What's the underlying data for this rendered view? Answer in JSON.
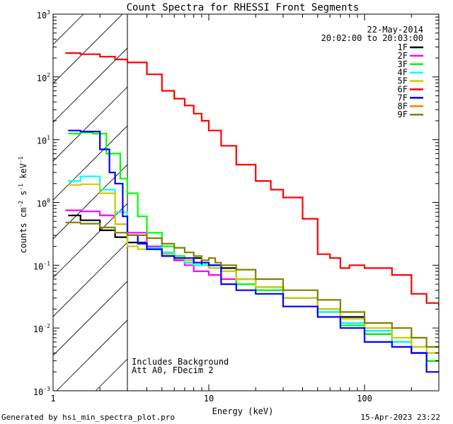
{
  "chart_data": {
    "type": "line",
    "title": "Count Spectra for RHESSI Front Segments",
    "xlabel": "Energy (keV)",
    "ylabel_parts": [
      "counts cm",
      "-2",
      " s",
      "-1",
      " keV",
      "-1"
    ],
    "xscale": "log",
    "yscale": "log",
    "xlim": [
      1,
      300
    ],
    "ylim": [
      0.001,
      1000
    ],
    "x_ticks": [
      {
        "value": 1,
        "label": "1"
      },
      {
        "value": 10,
        "label": "10"
      },
      {
        "value": 100,
        "label": "100"
      }
    ],
    "y_ticks": [
      {
        "value": 0.001,
        "base": "10",
        "exp": "-3"
      },
      {
        "value": 0.01,
        "base": "10",
        "exp": "-2"
      },
      {
        "value": 0.1,
        "base": "10",
        "exp": "-1"
      },
      {
        "value": 1,
        "base": "10",
        "exp": "0"
      },
      {
        "value": 10,
        "base": "10",
        "exp": "1"
      },
      {
        "value": 100,
        "base": "10",
        "exp": "2"
      },
      {
        "value": 1000,
        "base": "10",
        "exp": "3"
      }
    ],
    "hatched_region_keV": [
      1,
      3
    ],
    "date": "22-May-2014",
    "time_range": "20:02:00 to 20:03:00",
    "annotations": [
      "Includes Background",
      "Att A0, FDecim 2"
    ],
    "legend_position": "top-right",
    "series": [
      {
        "name": "1F",
        "color": "#000000",
        "x": [
          1.25,
          1.5,
          2,
          2.5,
          3,
          4,
          5,
          6,
          7,
          8,
          9,
          10,
          12,
          15,
          20,
          30,
          50,
          70,
          100,
          150,
          200,
          250
        ],
        "values": [
          0.62,
          0.52,
          0.36,
          0.28,
          0.23,
          0.18,
          0.16,
          0.12,
          0.11,
          0.13,
          0.1,
          0.1,
          0.09,
          0.06,
          0.045,
          0.03,
          0.018,
          0.015,
          0.008,
          0.006,
          0.004,
          0.003
        ]
      },
      {
        "name": "2F",
        "color": "#ff00ff",
        "x": [
          1.2,
          1.5,
          2,
          2.5,
          3,
          4,
          5,
          6,
          7,
          8,
          10,
          12,
          15,
          20,
          30,
          50,
          70,
          100,
          150,
          200,
          250
        ],
        "values": [
          0.75,
          0.72,
          0.62,
          0.45,
          0.33,
          0.2,
          0.14,
          0.12,
          0.1,
          0.08,
          0.07,
          0.06,
          0.05,
          0.04,
          0.03,
          0.02,
          0.012,
          0.009,
          0.006,
          0.004,
          0.003
        ]
      },
      {
        "name": "3F",
        "color": "#00ff00",
        "x": [
          1.25,
          1.5,
          1.8,
          2.2,
          2.7,
          3,
          3.5,
          4,
          5,
          6,
          7,
          8,
          10,
          12,
          15,
          20,
          30,
          50,
          70,
          100,
          150,
          200,
          250
        ],
        "values": [
          12.5,
          13,
          12.5,
          6,
          2.4,
          1.4,
          0.6,
          0.33,
          0.2,
          0.14,
          0.12,
          0.1,
          0.09,
          0.08,
          0.05,
          0.04,
          0.03,
          0.02,
          0.011,
          0.008,
          0.006,
          0.005,
          0.003
        ]
      },
      {
        "name": "4F",
        "color": "#00ffff",
        "x": [
          1.25,
          1.5,
          2,
          2.5,
          3,
          3.5,
          4,
          5,
          6,
          7,
          8,
          10,
          12,
          15,
          20,
          30,
          50,
          70,
          100,
          150,
          200,
          250
        ],
        "values": [
          2.2,
          2.6,
          1.6,
          0.7,
          0.3,
          0.22,
          0.19,
          0.16,
          0.13,
          0.11,
          0.1,
          0.09,
          0.08,
          0.06,
          0.045,
          0.03,
          0.018,
          0.012,
          0.009,
          0.006,
          0.005,
          0.004
        ]
      },
      {
        "name": "5F",
        "color": "#cccc00",
        "x": [
          1.25,
          1.5,
          2,
          2.5,
          3,
          3.5,
          4,
          5,
          6,
          7,
          8,
          10,
          12,
          15,
          20,
          30,
          50,
          70,
          100,
          150,
          200,
          250
        ],
        "values": [
          1.9,
          1.95,
          1.4,
          0.45,
          0.2,
          0.18,
          0.18,
          0.15,
          0.13,
          0.12,
          0.11,
          0.09,
          0.08,
          0.06,
          0.045,
          0.03,
          0.02,
          0.014,
          0.01,
          0.007,
          0.005,
          0.004
        ]
      },
      {
        "name": "6F",
        "color": "#ff0000",
        "x": [
          1.2,
          1.5,
          2,
          2.5,
          3,
          4,
          5,
          6,
          7,
          8,
          9,
          10,
          12,
          15,
          20,
          25,
          30,
          40,
          50,
          60,
          70,
          80,
          100,
          150,
          200,
          250,
          300
        ],
        "values": [
          240,
          230,
          210,
          190,
          170,
          110,
          60,
          45,
          35,
          26,
          20,
          14,
          8,
          4,
          2.2,
          1.6,
          1.2,
          0.55,
          0.15,
          0.13,
          0.09,
          0.1,
          0.09,
          0.07,
          0.035,
          0.025,
          0.022
        ]
      },
      {
        "name": "7F",
        "color": "#0000ff",
        "x": [
          1.25,
          1.5,
          2,
          2.3,
          2.5,
          2.8,
          3,
          3.5,
          4,
          5,
          6,
          7,
          8,
          10,
          12,
          15,
          20,
          30,
          50,
          70,
          100,
          150,
          200,
          250
        ],
        "values": [
          14,
          13.5,
          7,
          3,
          2,
          0.6,
          0.3,
          0.22,
          0.18,
          0.14,
          0.13,
          0.13,
          0.11,
          0.1,
          0.05,
          0.04,
          0.035,
          0.022,
          0.015,
          0.01,
          0.006,
          0.005,
          0.004,
          0.002
        ]
      },
      {
        "name": "8F",
        "color": "#ff7f00",
        "x": [],
        "values": []
      },
      {
        "name": "9F",
        "color": "#808000",
        "x": [
          1.2,
          1.5,
          2,
          2.5,
          3,
          4,
          5,
          6,
          7,
          8,
          9,
          10,
          11,
          12,
          15,
          20,
          30,
          50,
          70,
          100,
          150,
          200,
          250
        ],
        "values": [
          0.48,
          0.46,
          0.4,
          0.33,
          0.3,
          0.27,
          0.22,
          0.19,
          0.16,
          0.14,
          0.12,
          0.13,
          0.11,
          0.1,
          0.085,
          0.06,
          0.04,
          0.028,
          0.018,
          0.012,
          0.01,
          0.007,
          0.005
        ]
      }
    ]
  },
  "footer": {
    "generated_by": "Generated by hsi_min_spectra_plot.pro",
    "timestamp": "15-Apr-2023 23:22"
  }
}
